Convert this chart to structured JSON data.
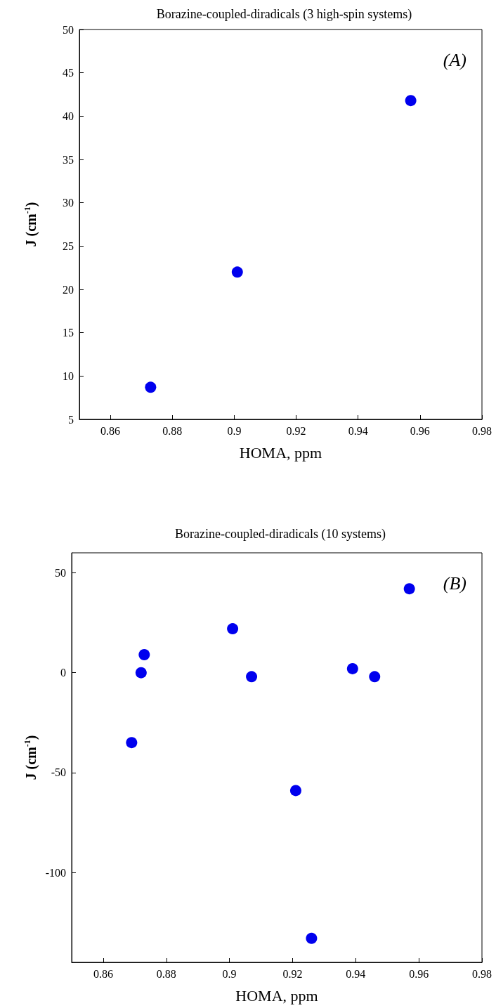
{
  "chart_data": [
    {
      "type": "scatter",
      "title": "Borazine-coupled-diradicals (3 high-spin systems)",
      "xlabel": "HOMA, ppm",
      "ylabel": "J (cm$^{-1}$)",
      "annotations": [
        "(A)"
      ],
      "marker": "circle",
      "grid": false,
      "series": [
        {
          "color": "#0000ee",
          "x": [
            0.873,
            0.901,
            0.957
          ],
          "values": [
            8.7,
            22,
            41.8
          ]
        }
      ],
      "xlim": [
        0.85,
        0.98
      ],
      "xticks": [
        0.86,
        0.88,
        0.9,
        0.92,
        0.94,
        0.96,
        0.98
      ],
      "ylim": [
        5,
        50
      ],
      "yticks": [
        5,
        10,
        15,
        20,
        25,
        30,
        35,
        40,
        45,
        50
      ]
    },
    {
      "type": "scatter",
      "title": "Borazine-coupled-diradicals (10 systems)",
      "xlabel": "HOMA, ppm",
      "ylabel": "J (cm$^{-1}$)",
      "annotations": [
        "(B)"
      ],
      "marker": "circle",
      "grid": false,
      "series": [
        {
          "color": "#0000ee",
          "x": [
            0.869,
            0.872,
            0.873,
            0.901,
            0.907,
            0.921,
            0.926,
            0.939,
            0.946,
            0.957
          ],
          "values": [
            -35,
            0,
            9,
            22,
            -2,
            -59,
            -133,
            2,
            -2,
            42
          ]
        }
      ],
      "xlim": [
        0.85,
        0.98
      ],
      "xticks": [
        0.86,
        0.88,
        0.9,
        0.92,
        0.94,
        0.96,
        0.98
      ],
      "ylim": [
        -145,
        60
      ],
      "yticks": [
        -100,
        -50,
        0,
        50
      ]
    }
  ]
}
